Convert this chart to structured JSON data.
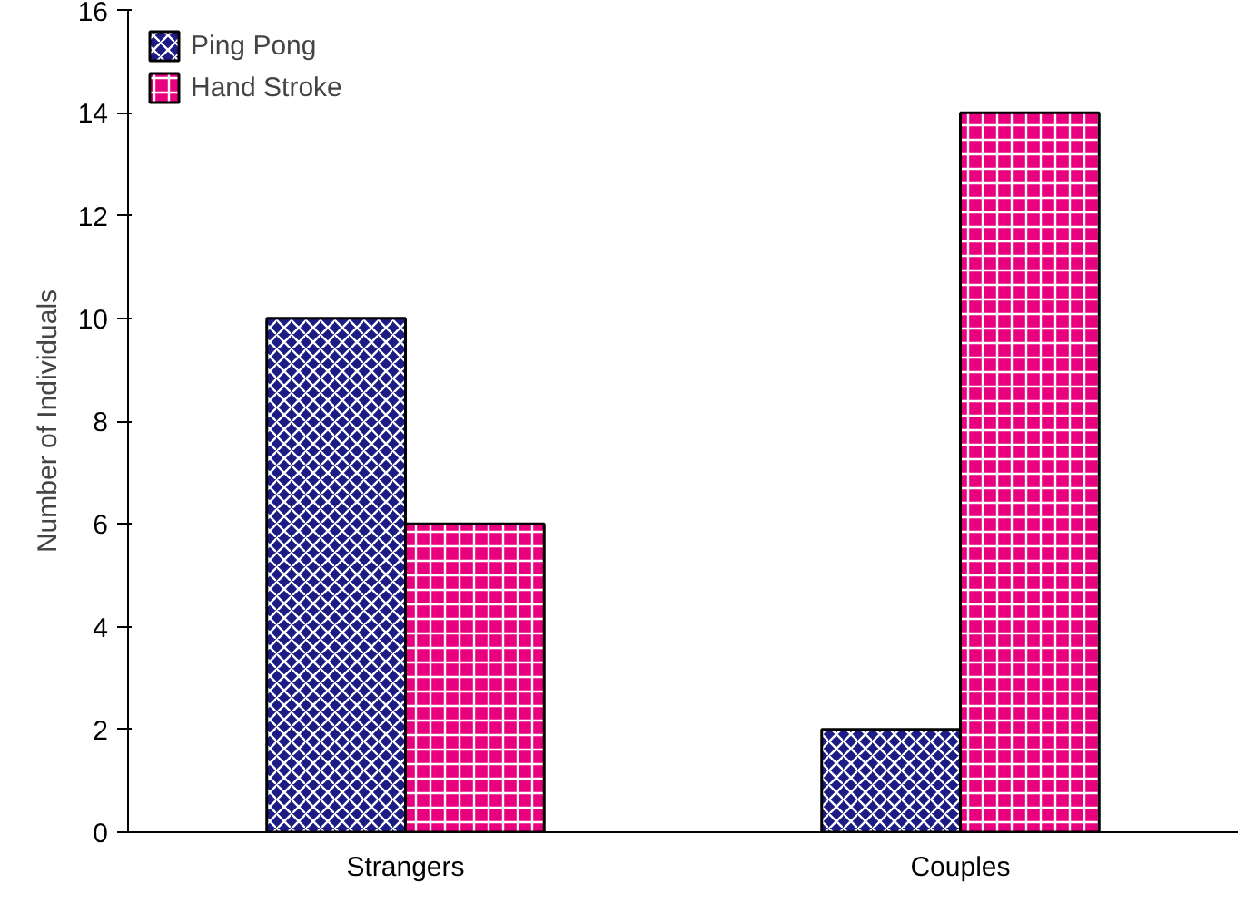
{
  "chart_data": {
    "type": "bar",
    "ylabel": "Number of Individuals",
    "categories": [
      "Strangers",
      "Couples"
    ],
    "series": [
      {
        "name": "Ping Pong",
        "color": "#1c1c84",
        "values": [
          10,
          2
        ]
      },
      {
        "name": "Hand Stroke",
        "color": "#e8007f",
        "values": [
          6,
          14
        ]
      }
    ],
    "ylim": [
      0,
      16
    ],
    "yticks": [
      0,
      2,
      4,
      6,
      8,
      10,
      12,
      14,
      16
    ],
    "grid": false,
    "legend": "top left"
  }
}
